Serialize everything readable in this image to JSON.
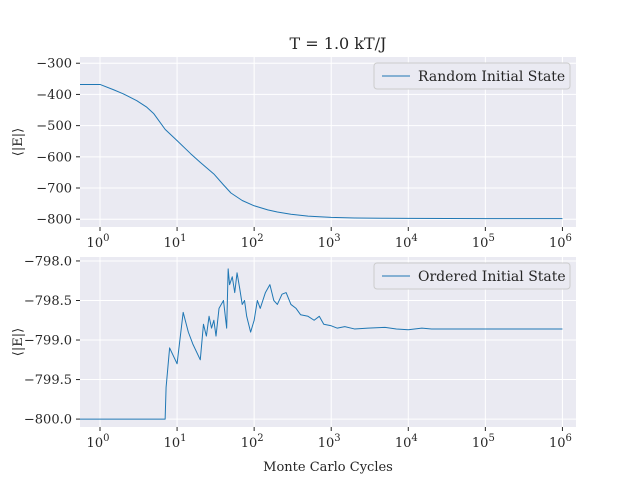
{
  "figure": {
    "title": "T = 1.0 kT/J",
    "xlabel": "Monte Carlo Cycles",
    "colors": {
      "line": "#1f77b4",
      "axes_bg": "#eaeaf2",
      "grid": "#ffffff",
      "text": "#262626"
    }
  },
  "chart_data": [
    {
      "type": "line",
      "title": "T = 1.0 kT/J",
      "xlabel": "",
      "ylabel": "⟨|E|⟩",
      "xscale": "log",
      "xlim": [
        0.55,
        1500000
      ],
      "ylim": [
        -825,
        -280
      ],
      "xticks": [
        1,
        10,
        100,
        1000,
        10000,
        100000,
        1000000
      ],
      "xtick_labels": [
        [
          "10",
          "0"
        ],
        [
          "10",
          "1"
        ],
        [
          "10",
          "2"
        ],
        [
          "10",
          "3"
        ],
        [
          "10",
          "4"
        ],
        [
          "10",
          "5"
        ],
        [
          "10",
          "6"
        ]
      ],
      "yticks": [
        -300,
        -400,
        -500,
        -600,
        -700,
        -800
      ],
      "ytick_labels": [
        "−300",
        "−400",
        "−500",
        "−600",
        "−700",
        "−800"
      ],
      "grid": true,
      "legend_position": "top-right",
      "series": [
        {
          "name": "Random Initial State",
          "x": [
            0.55,
            1,
            1.5,
            2,
            3,
            4,
            5,
            7,
            10,
            15,
            20,
            30,
            40,
            50,
            70,
            100,
            150,
            200,
            300,
            500,
            700,
            1000,
            2000,
            5000,
            10000,
            100000,
            1000000
          ],
          "y": [
            -368,
            -368,
            -385,
            -398,
            -420,
            -440,
            -462,
            -512,
            -548,
            -590,
            -618,
            -655,
            -690,
            -716,
            -740,
            -757,
            -770,
            -777,
            -784,
            -790,
            -792,
            -794,
            -796,
            -797,
            -797.5,
            -798,
            -798
          ]
        }
      ]
    },
    {
      "type": "line",
      "title": "",
      "xlabel": "Monte Carlo Cycles",
      "ylabel": "⟨|E|⟩",
      "xscale": "log",
      "xlim": [
        0.55,
        1500000
      ],
      "ylim": [
        -800.1,
        -797.95
      ],
      "xticks": [
        1,
        10,
        100,
        1000,
        10000,
        100000,
        1000000
      ],
      "xtick_labels": [
        [
          "10",
          "0"
        ],
        [
          "10",
          "1"
        ],
        [
          "10",
          "2"
        ],
        [
          "10",
          "3"
        ],
        [
          "10",
          "4"
        ],
        [
          "10",
          "5"
        ],
        [
          "10",
          "6"
        ]
      ],
      "yticks": [
        -798.0,
        -798.5,
        -799.0,
        -799.5,
        -800.0
      ],
      "ytick_labels": [
        "−798.0",
        "−798.5",
        "−799.0",
        "−799.5",
        "−800.0"
      ],
      "grid": true,
      "legend_position": "top-right",
      "series": [
        {
          "name": "Ordered Initial State",
          "x": [
            0.55,
            1,
            2,
            4,
            7,
            7.2,
            8,
            10,
            12,
            14,
            16,
            20,
            22,
            24,
            26,
            28,
            30,
            32,
            35,
            40,
            44,
            46,
            48,
            52,
            56,
            60,
            65,
            70,
            75,
            80,
            90,
            100,
            110,
            120,
            140,
            160,
            180,
            200,
            230,
            260,
            300,
            350,
            400,
            500,
            600,
            700,
            800,
            1000,
            1200,
            1500,
            2000,
            3000,
            5000,
            7000,
            10000,
            15000,
            20000,
            50000,
            100000,
            200000,
            500000,
            1000000
          ],
          "y": [
            -800,
            -800,
            -800,
            -800,
            -800,
            -799.6,
            -799.1,
            -799.3,
            -798.65,
            -798.9,
            -799.05,
            -799.25,
            -798.8,
            -798.95,
            -798.7,
            -798.85,
            -798.75,
            -798.95,
            -798.6,
            -798.5,
            -798.85,
            -798.1,
            -798.3,
            -798.2,
            -798.4,
            -798.15,
            -798.35,
            -798.55,
            -798.5,
            -798.7,
            -798.9,
            -798.75,
            -798.5,
            -798.6,
            -798.4,
            -798.3,
            -798.5,
            -798.55,
            -798.42,
            -798.4,
            -798.55,
            -798.6,
            -798.68,
            -798.7,
            -798.75,
            -798.7,
            -798.8,
            -798.82,
            -798.85,
            -798.83,
            -798.86,
            -798.85,
            -798.84,
            -798.86,
            -798.87,
            -798.85,
            -798.86,
            -798.86,
            -798.86,
            -798.86,
            -798.86,
            -798.86
          ]
        }
      ]
    }
  ]
}
